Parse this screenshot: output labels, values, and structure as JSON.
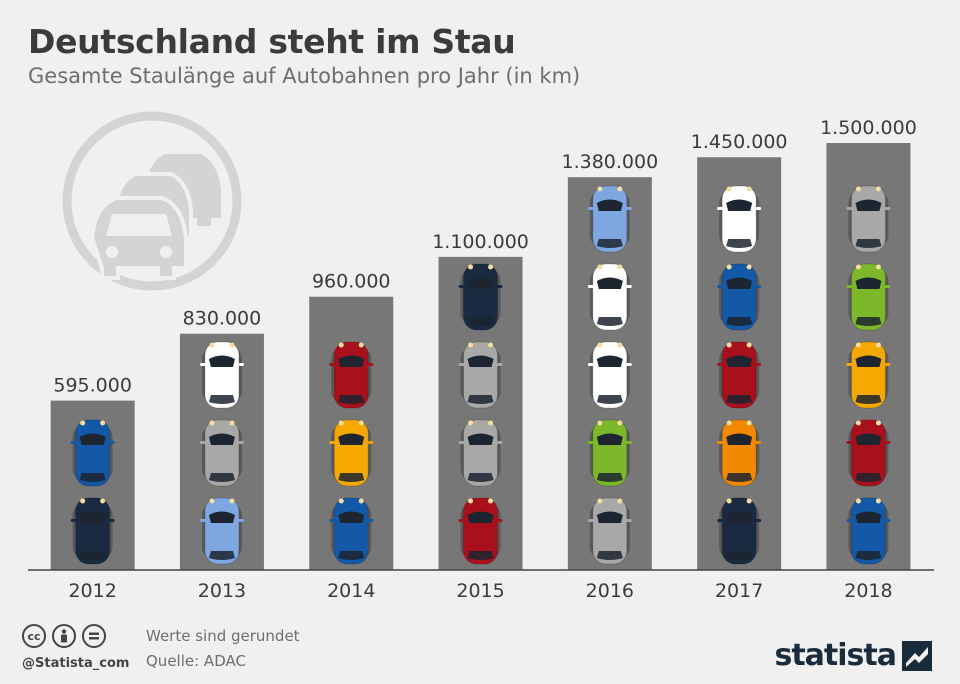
{
  "title": "Deutschland steht im Stau",
  "subtitle": "Gesamte Staulänge auf Autobahnen pro Jahr (in km)",
  "footer": {
    "handle": "@Statista_com",
    "note": "Werte sind gerundet",
    "source": "Quelle: ADAC",
    "brand": "statista"
  },
  "icons": [
    "creative-commons-icon",
    "attribution-icon",
    "no-derivatives-icon",
    "traffic-jam-icon",
    "statista-logo-icon"
  ],
  "colors": {
    "background": "#f0f0f0",
    "bar": "#777777",
    "icon_light": "#d4d4d4",
    "text_dark": "#3b3b3b"
  },
  "chart_data": {
    "type": "bar",
    "categories": [
      "2012",
      "2013",
      "2014",
      "2015",
      "2016",
      "2017",
      "2018"
    ],
    "values": [
      595000,
      830000,
      960000,
      1100000,
      1380000,
      1450000,
      1500000
    ],
    "value_labels": [
      "595.000",
      "830.000",
      "960.000",
      "1.100.000",
      "1.380.000",
      "1.450.000",
      "1.500.000"
    ],
    "ylim": [
      0,
      1500000
    ],
    "grid": false,
    "legend": "none",
    "car_colors": [
      [
        "#1a2a40",
        "#1458a8"
      ],
      [
        "#7ea6e0",
        "#a8a8a8",
        "#ffffff"
      ],
      [
        "#1458a8",
        "#f5a800",
        "#a8101c"
      ],
      [
        "#a8101c",
        "#a8a8a8",
        "#a8a8a8",
        "#1a2a40"
      ],
      [
        "#a8a8a8",
        "#7cb82a",
        "#ffffff",
        "#ffffff",
        "#7ea6e0"
      ],
      [
        "#1a2a40",
        "#f08800",
        "#a8101c",
        "#1458a8",
        "#ffffff"
      ],
      [
        "#1458a8",
        "#a8101c",
        "#f5a800",
        "#7cb82a",
        "#a8a8a8"
      ]
    ]
  }
}
